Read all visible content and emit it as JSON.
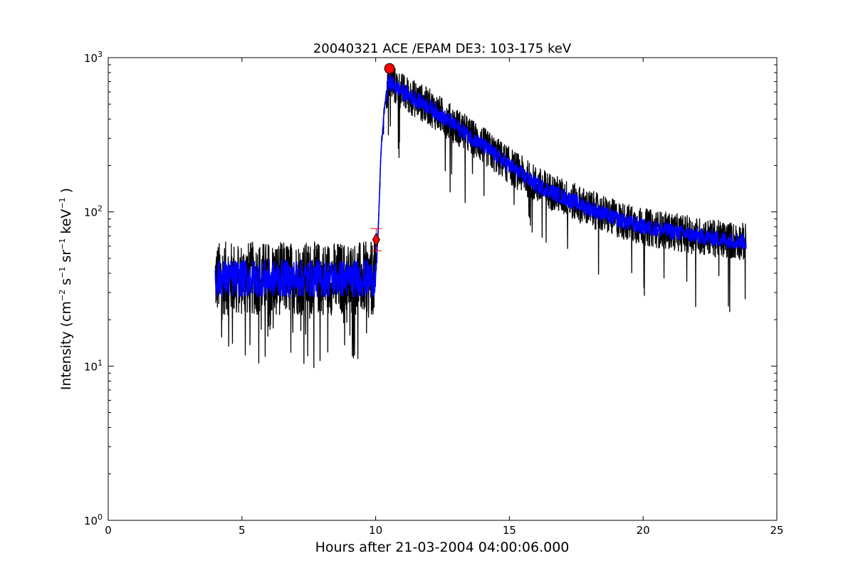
{
  "chart_data": {
    "type": "line",
    "title": "20040321 ACE /EPAM DE3: 103-175 keV",
    "xlabel": "Hours after 21-03-2004 04:00:06.000",
    "ylabel": "Intensity (cm",
    "ylabel_parts": {
      "cm_exp": "−2",
      "s": " s",
      "s_exp": "−1",
      "sr": " sr",
      "sr_exp": "−1",
      "kev": " keV",
      "kev_exp": "−1",
      "close": " )"
    },
    "xlim": [
      0,
      25
    ],
    "ylim": [
      1,
      1000
    ],
    "yscale": "log",
    "grid": false,
    "xticks": [
      0,
      5,
      10,
      15,
      20,
      25
    ],
    "xtick_labels": [
      "0",
      "5",
      "10",
      "15",
      "20",
      "25"
    ],
    "yticks": [
      1,
      10,
      100,
      1000
    ],
    "ytick_labels": [
      {
        "base": "10",
        "exp": "0"
      },
      {
        "base": "10",
        "exp": "1"
      },
      {
        "base": "10",
        "exp": "2"
      },
      {
        "base": "10",
        "exp": "3"
      }
    ],
    "series": [
      {
        "color": "#000000",
        "x": [
          4.0,
          9.5,
          10.0,
          10.1,
          10.2,
          10.35,
          10.5,
          11.0,
          12.0,
          13.0,
          14.0,
          15.0,
          16.0,
          17.0,
          18.0,
          19.0,
          20.0,
          21.0,
          22.0,
          23.0,
          23.85
        ],
        "y": [
          37,
          37,
          37,
          80,
          250,
          520,
          700,
          600,
          480,
          360,
          270,
          200,
          150,
          125,
          105,
          90,
          80,
          75,
          70,
          66,
          64
        ]
      },
      {
        "color": "#0000ff",
        "x": [
          4.0,
          9.5,
          10.0,
          10.1,
          10.2,
          10.35,
          10.5,
          11.0,
          12.0,
          13.0,
          14.0,
          15.0,
          16.0,
          17.0,
          18.0,
          19.0,
          20.0,
          21.0,
          22.0,
          23.0,
          23.85
        ],
        "y": [
          37,
          37,
          37,
          80,
          250,
          520,
          700,
          600,
          480,
          360,
          270,
          200,
          150,
          125,
          105,
          90,
          80,
          75,
          70,
          66,
          64
        ]
      }
    ],
    "markers": [
      {
        "shape": "circle",
        "color": "#ff0000",
        "x": 10.52,
        "y": 850
      },
      {
        "shape": "diamond",
        "color": "#ff0000",
        "x": 10.02,
        "y": 66,
        "error_low": 56,
        "error_high": 78
      }
    ]
  }
}
